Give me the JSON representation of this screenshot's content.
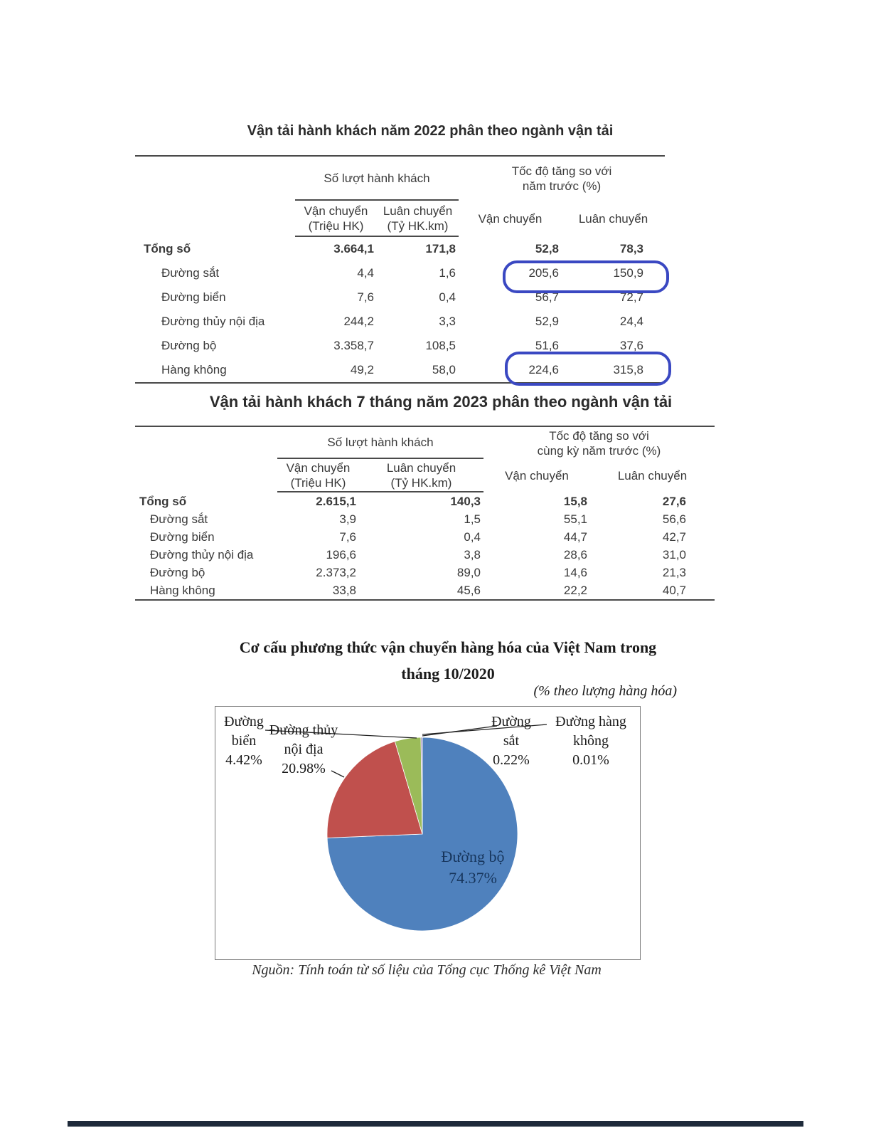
{
  "table1": {
    "title": "Vận tải hành khách năm 2022 phân theo ngành vận tải",
    "group1": "Số lượt hành khách",
    "group2_l1": "Tốc độ tăng so với",
    "group2_l2": "năm trước (%)",
    "sub1_l1": "Vận chuyển",
    "sub1_l2": "(Triệu HK)",
    "sub2_l1": "Luân chuyển",
    "sub2_l2": "(Tỷ HK.km)",
    "sub3": "Vận chuyển",
    "sub4": "Luân chuyển",
    "rows": [
      {
        "label": "Tổng số",
        "v1": "3.664,1",
        "v2": "171,8",
        "v3": "52,8",
        "v4": "78,3",
        "bold": true
      },
      {
        "label": "Đường sắt",
        "v1": "4,4",
        "v2": "1,6",
        "v3": "205,6",
        "v4": "150,9"
      },
      {
        "label": "Đường biển",
        "v1": "7,6",
        "v2": "0,4",
        "v3": "56,7",
        "v4": "72,7"
      },
      {
        "label": "Đường thủy nội địa",
        "v1": "244,2",
        "v2": "3,3",
        "v3": "52,9",
        "v4": "24,4"
      },
      {
        "label": "Đường bộ",
        "v1": "3.358,7",
        "v2": "108,5",
        "v3": "51,6",
        "v4": "37,6"
      },
      {
        "label": "Hàng không",
        "v1": "49,2",
        "v2": "58,0",
        "v3": "224,6",
        "v4": "315,8"
      }
    ],
    "highlight_color": "#3a48c2"
  },
  "table2": {
    "title": "Vận tải hành khách 7 tháng năm 2023 phân theo ngành vận tải",
    "group1": "Số lượt hành khách",
    "group2_l1": "Tốc độ tăng so với",
    "group2_l2": "cùng kỳ năm trước (%)",
    "sub1_l1": "Vận chuyển",
    "sub1_l2": "(Triệu HK)",
    "sub2_l1": "Luân chuyển",
    "sub2_l2": "(Tỷ HK.km)",
    "sub3": "Vận chuyển",
    "sub4": "Luân chuyển",
    "rows": [
      {
        "label": "Tổng số",
        "v1": "2.615,1",
        "v2": "140,3",
        "v3": "15,8",
        "v4": "27,6",
        "bold": true
      },
      {
        "label": "Đường sắt",
        "v1": "3,9",
        "v2": "1,5",
        "v3": "55,1",
        "v4": "56,6"
      },
      {
        "label": "Đường biển",
        "v1": "7,6",
        "v2": "0,4",
        "v3": "44,7",
        "v4": "42,7"
      },
      {
        "label": "Đường thủy nội địa",
        "v1": "196,6",
        "v2": "3,8",
        "v3": "28,6",
        "v4": "31,0"
      },
      {
        "label": "Đường bộ",
        "v1": "2.373,2",
        "v2": "89,0",
        "v3": "14,6",
        "v4": "21,3"
      },
      {
        "label": "Hàng không",
        "v1": "33,8",
        "v2": "45,6",
        "v3": "22,2",
        "v4": "40,7"
      }
    ]
  },
  "chart": {
    "title_line1": "Cơ cấu phương thức vận chuyển hàng hóa của Việt Nam trong",
    "title_line2": "tháng 10/2020",
    "subtitle": "(% theo lượng hàng hóa)",
    "source": "Nguồn: Tính toán từ số liệu của Tổng cục Thống kê Việt Nam",
    "labels": {
      "bien": {
        "l1": "Đường",
        "l2": "biển",
        "l3": "4.42%"
      },
      "thuy": {
        "l1": "Đường thủy",
        "l2": "nội địa",
        "l3": "20.98%"
      },
      "sat": {
        "l1": "Đường",
        "l2": "sắt",
        "l3": "0.22%"
      },
      "khong": {
        "l1": "Đường hàng",
        "l2": "không",
        "l3": "0.01%"
      },
      "bo": {
        "l1": "Đường bộ",
        "l2": "74.37%"
      }
    }
  },
  "chart_data": {
    "type": "pie",
    "title": "Cơ cấu phương thức vận chuyển hàng hóa của Việt Nam trong tháng 10/2020",
    "unit_note": "(% theo lượng hàng hóa)",
    "source": "Nguồn: Tính toán từ số liệu của Tổng cục Thống kê Việt Nam",
    "slices": [
      {
        "id": "duong-bo",
        "label": "Đường bộ",
        "value": 74.37,
        "color": "#4f81bd"
      },
      {
        "id": "duong-thuy-noi-dia",
        "label": "Đường thủy nội địa",
        "value": 20.98,
        "color": "#c0504d"
      },
      {
        "id": "duong-bien",
        "label": "Đường biển",
        "value": 4.42,
        "color": "#9bbb59"
      },
      {
        "id": "duong-sat",
        "label": "Đường sắt",
        "value": 0.22,
        "color": "#8064a2"
      },
      {
        "id": "duong-hang-khong",
        "label": "Đường hàng không",
        "value": 0.01,
        "color": "#4bacc6"
      }
    ]
  }
}
